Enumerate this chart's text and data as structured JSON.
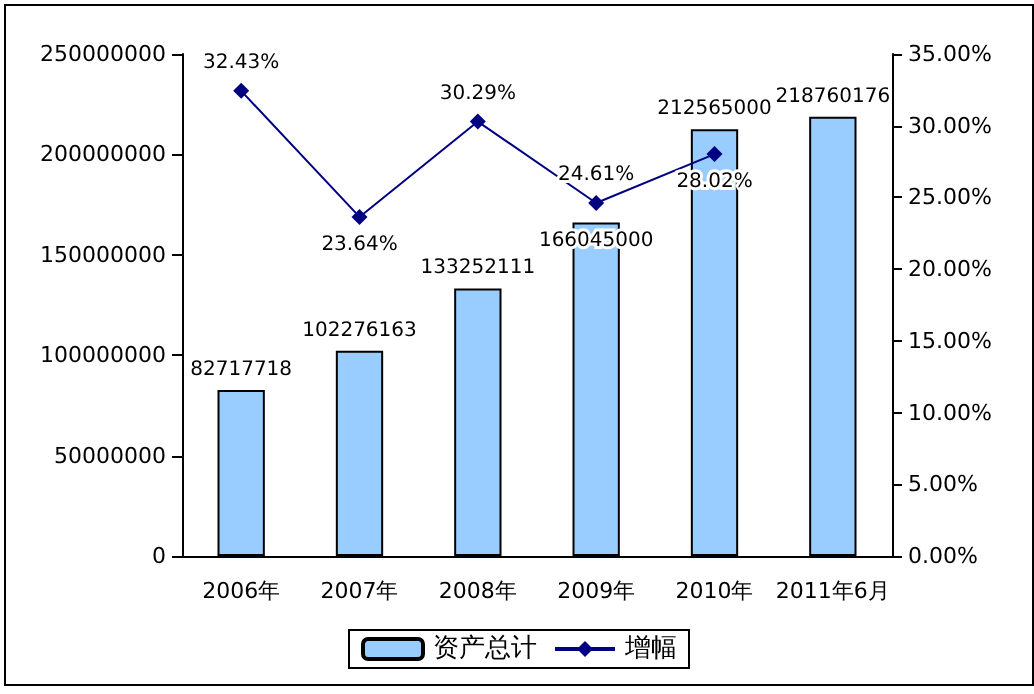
{
  "chart_data": {
    "type": "bar",
    "categories": [
      "2006年",
      "2007年",
      "2008年",
      "2009年",
      "2010年",
      "2011年6月"
    ],
    "series": [
      {
        "name": "资产总计",
        "color": "#99ccff",
        "values": [
          82717718,
          102276163,
          133252111,
          166045000,
          212565000,
          218760176
        ],
        "value_labels": [
          "82717718",
          "102276163",
          "133252111",
          "166045000",
          "212565000",
          "218760176"
        ]
      },
      {
        "name": "增幅",
        "type": "line",
        "axis": "y2",
        "color": "#000080",
        "values": [
          32.43,
          23.64,
          30.29,
          24.61,
          28.02,
          null
        ],
        "value_labels": [
          "32.43%",
          "23.64%",
          "30.29%",
          "24.61%",
          "28.02%",
          null
        ]
      }
    ],
    "ylim": [
      0,
      250000000
    ],
    "yticks": [
      0,
      50000000,
      100000000,
      150000000,
      200000000,
      250000000
    ],
    "y2lim": [
      0,
      35
    ],
    "y2ticks": [
      {
        "value": 0,
        "label": "0.00%"
      },
      {
        "value": 5,
        "label": "5.00%"
      },
      {
        "value": 10,
        "label": "10.00%"
      },
      {
        "value": 15,
        "label": "15.00%"
      },
      {
        "value": 20,
        "label": "20.00%"
      },
      {
        "value": 25,
        "label": "25.00%"
      },
      {
        "value": 30,
        "label": "30.00%"
      },
      {
        "value": 35,
        "label": "35.00%"
      }
    ],
    "grid": false,
    "legend": "bottom",
    "marker": "diamond",
    "line_style": "solid"
  }
}
